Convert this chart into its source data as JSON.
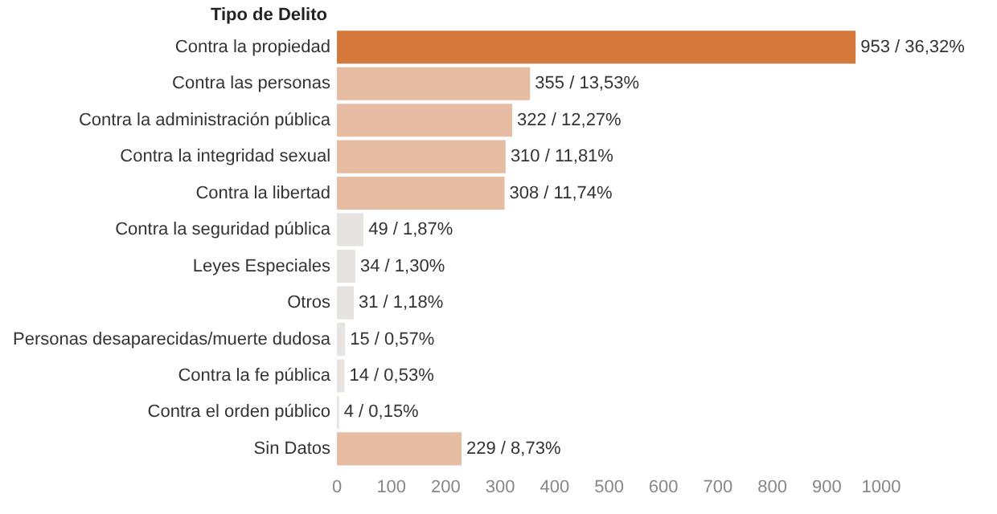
{
  "chart_data": {
    "type": "bar",
    "orientation": "horizontal",
    "ylabel": "Tipo de Delito",
    "categories": [
      "Contra la propiedad",
      "Contra las personas",
      "Contra la administración pública",
      "Contra la integridad sexual",
      "Contra la libertad",
      "Contra la seguridad pública",
      "Leyes Especiales",
      "Otros",
      "Personas desaparecidas/muerte dudosa",
      "Contra la fe pública",
      "Contra el orden público",
      "Sin Datos"
    ],
    "values": [
      953,
      355,
      322,
      310,
      308,
      49,
      34,
      31,
      15,
      14,
      4,
      229
    ],
    "colors": [
      "#d4783c",
      "#e6bca3",
      "#e6bca3",
      "#e6bca3",
      "#e6bca3",
      "#e6e3e1",
      "#e6e3e1",
      "#e6e3e1",
      "#e6e3e1",
      "#e6e3e1",
      "#e6e3e1",
      "#e6bca3"
    ],
    "value_labels": [
      "953 / 36,32%",
      "355 / 13,53%",
      "322 / 12,27%",
      "310 / 11,81%",
      "308 / 11,74%",
      "49 / 1,87%",
      "34 / 1,30%",
      "31 / 1,18%",
      "15 / 0,57%",
      "14 / 0,53%",
      "4 / 0,15%",
      "229 / 8,73%"
    ],
    "xlim": [
      0,
      1000
    ],
    "xticks": [
      0,
      100,
      200,
      300,
      400,
      500,
      600,
      700,
      800,
      900,
      1000
    ],
    "grid": false,
    "legend": false
  }
}
